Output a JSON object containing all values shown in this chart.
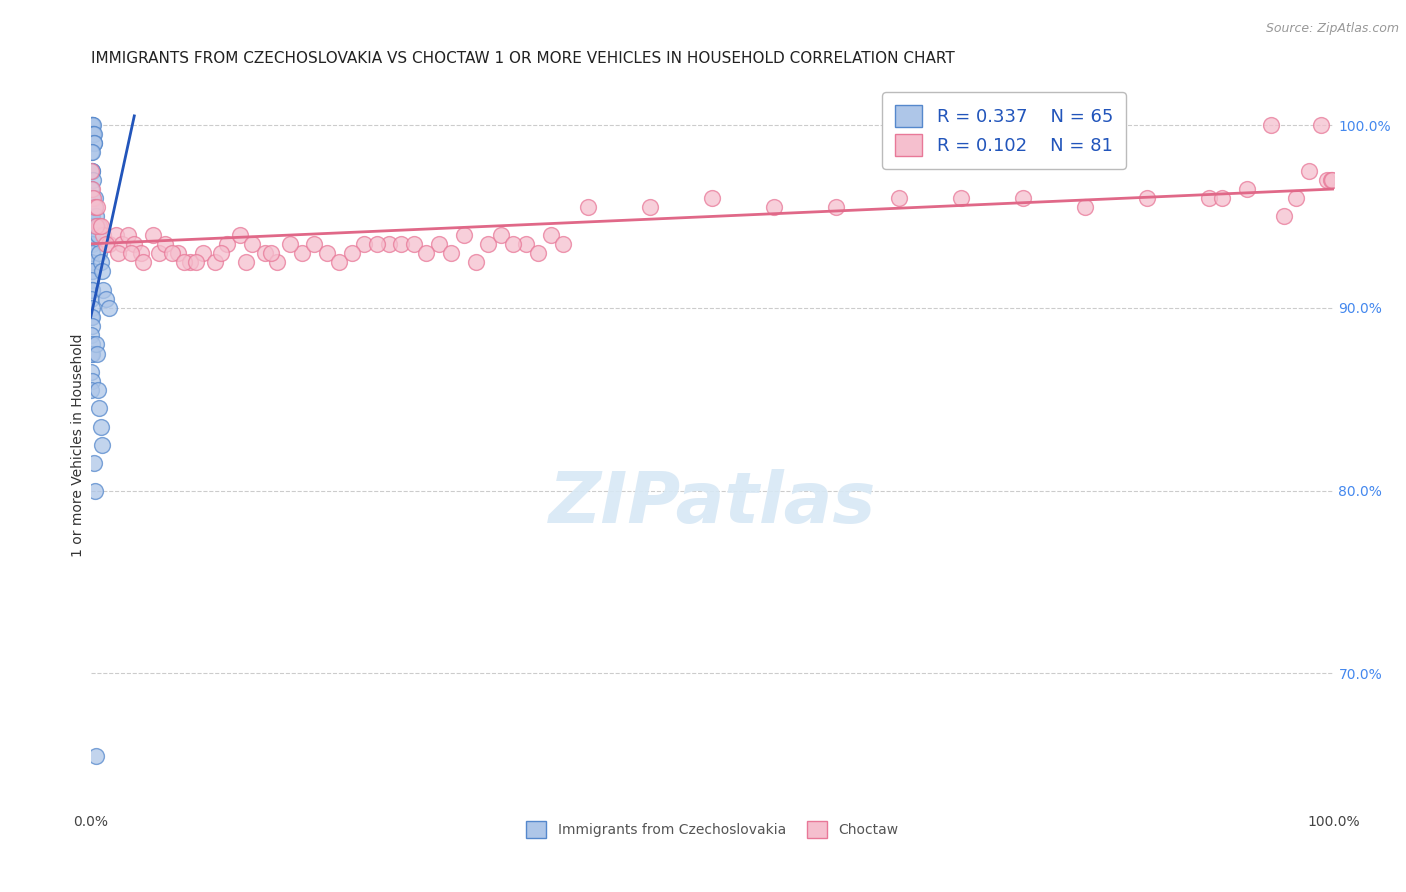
{
  "title": "IMMIGRANTS FROM CZECHOSLOVAKIA VS CHOCTAW 1 OR MORE VEHICLES IN HOUSEHOLD CORRELATION CHART",
  "source": "Source: ZipAtlas.com",
  "ylabel": "1 or more Vehicles in Household",
  "blue_R": 0.337,
  "blue_N": 65,
  "pink_R": 0.102,
  "pink_N": 81,
  "blue_color": "#aec6e8",
  "blue_edge_color": "#5588cc",
  "pink_color": "#f5bfce",
  "pink_edge_color": "#e87898",
  "blue_line_color": "#2255bb",
  "pink_line_color": "#e06888",
  "legend_label_blue": "Immigrants from Czechoslovakia",
  "legend_label_pink": "Choctaw",
  "xlim": [
    0.0,
    100.0
  ],
  "ylim": [
    0.625,
    1.025
  ],
  "blue_scatter_x": [
    0.05,
    0.08,
    0.1,
    0.12,
    0.15,
    0.18,
    0.2,
    0.22,
    0.25,
    0.28,
    0.05,
    0.08,
    0.1,
    0.12,
    0.15,
    0.05,
    0.08,
    0.1,
    0.15,
    0.18,
    0.05,
    0.07,
    0.09,
    0.12,
    0.05,
    0.08,
    0.1,
    0.05,
    0.08,
    0.1,
    0.05,
    0.07,
    0.09,
    0.05,
    0.08,
    0.05,
    0.08,
    0.1,
    0.05,
    0.07,
    0.05,
    0.07,
    0.05,
    0.07,
    0.05,
    0.3,
    0.35,
    0.4,
    0.5,
    0.6,
    0.7,
    0.8,
    0.9,
    1.0,
    1.2,
    1.5,
    0.4,
    0.5,
    0.6,
    0.7,
    0.8,
    0.9,
    0.25,
    0.3,
    0.45
  ],
  "blue_scatter_y": [
    1.0,
    1.0,
    1.0,
    1.0,
    1.0,
    0.995,
    0.995,
    0.995,
    0.99,
    0.99,
    0.985,
    0.985,
    0.975,
    0.975,
    0.97,
    0.965,
    0.96,
    0.96,
    0.955,
    0.955,
    0.95,
    0.95,
    0.945,
    0.94,
    0.94,
    0.935,
    0.93,
    0.925,
    0.92,
    0.92,
    0.915,
    0.91,
    0.91,
    0.905,
    0.9,
    0.895,
    0.895,
    0.89,
    0.885,
    0.88,
    0.875,
    0.875,
    0.865,
    0.86,
    0.855,
    0.96,
    0.955,
    0.95,
    0.945,
    0.94,
    0.93,
    0.925,
    0.92,
    0.91,
    0.905,
    0.9,
    0.88,
    0.875,
    0.855,
    0.845,
    0.835,
    0.825,
    0.815,
    0.8,
    0.655
  ],
  "pink_scatter_x": [
    0.05,
    0.1,
    0.2,
    0.3,
    0.5,
    0.7,
    1.0,
    1.5,
    2.0,
    2.5,
    3.0,
    3.5,
    4.0,
    5.0,
    5.5,
    6.0,
    7.0,
    8.0,
    9.0,
    10.0,
    11.0,
    12.0,
    13.0,
    14.0,
    15.0,
    17.0,
    18.0,
    19.0,
    20.0,
    22.0,
    24.0,
    25.0,
    26.0,
    28.0,
    30.0,
    32.0,
    33.0,
    35.0,
    37.0,
    38.0,
    0.4,
    0.8,
    1.2,
    2.2,
    3.2,
    4.2,
    6.5,
    7.5,
    8.5,
    10.5,
    12.5,
    14.5,
    16.0,
    21.0,
    23.0,
    27.0,
    29.0,
    31.0,
    34.0,
    36.0,
    60.0,
    65.0,
    70.0,
    75.0,
    80.0,
    85.0,
    90.0,
    95.0,
    99.0,
    99.5,
    55.0,
    50.0,
    45.0,
    40.0,
    99.8,
    99.9,
    98.0,
    97.0,
    96.0,
    93.0,
    91.0
  ],
  "pink_scatter_y": [
    0.975,
    0.965,
    0.96,
    0.955,
    0.955,
    0.945,
    0.94,
    0.935,
    0.94,
    0.935,
    0.94,
    0.935,
    0.93,
    0.94,
    0.93,
    0.935,
    0.93,
    0.925,
    0.93,
    0.925,
    0.935,
    0.94,
    0.935,
    0.93,
    0.925,
    0.93,
    0.935,
    0.93,
    0.925,
    0.935,
    0.935,
    0.935,
    0.935,
    0.935,
    0.94,
    0.935,
    0.94,
    0.935,
    0.94,
    0.935,
    0.945,
    0.945,
    0.935,
    0.93,
    0.93,
    0.925,
    0.93,
    0.925,
    0.925,
    0.93,
    0.925,
    0.93,
    0.935,
    0.93,
    0.935,
    0.93,
    0.93,
    0.925,
    0.935,
    0.93,
    0.955,
    0.96,
    0.96,
    0.96,
    0.955,
    0.96,
    0.96,
    1.0,
    1.0,
    0.97,
    0.955,
    0.96,
    0.955,
    0.955,
    0.97,
    0.97,
    0.975,
    0.96,
    0.95,
    0.965,
    0.96
  ],
  "grid_color": "#cccccc",
  "background_color": "#ffffff",
  "title_fontsize": 11,
  "source_fontsize": 9,
  "axis_label_fontsize": 10,
  "tick_fontsize": 10,
  "legend_fontsize": 13,
  "marker_size": 130,
  "blue_trendline": [
    0.0,
    0.895,
    3.5,
    1.005
  ],
  "pink_trendline": [
    0.0,
    0.935,
    100.0,
    0.965
  ]
}
